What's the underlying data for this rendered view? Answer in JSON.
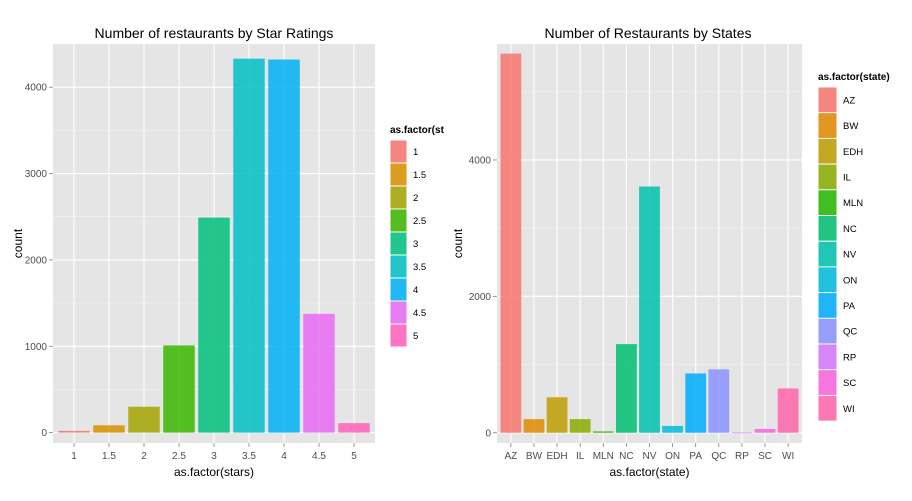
{
  "chart_data": [
    {
      "type": "bar",
      "title": "Number of restaurants by Star Ratings",
      "xlabel": "as.factor(stars)",
      "ylabel": "count",
      "legend_title": "as.factor(st",
      "legend_position": "right",
      "grid": true,
      "ylim": [
        -120,
        4500
      ],
      "yticks": [
        0,
        1000,
        2000,
        3000,
        4000
      ],
      "categories": [
        "1",
        "1.5",
        "2",
        "2.5",
        "3",
        "3.5",
        "4",
        "4.5",
        "5"
      ],
      "values": [
        20,
        85,
        300,
        1010,
        2490,
        4330,
        4320,
        1375,
        110
      ],
      "colors": [
        "#F8766D",
        "#D89000",
        "#A3A500",
        "#39B600",
        "#00BF7D",
        "#00BFC4",
        "#00B0F6",
        "#E76BF3",
        "#FF62BC"
      ]
    },
    {
      "type": "bar",
      "title": "Number of Restaurants by States",
      "xlabel": "as.factor(state)",
      "ylabel": "count",
      "legend_title": "as.factor(state)",
      "legend_position": "right",
      "grid": true,
      "ylim": [
        -150,
        5700
      ],
      "yticks": [
        0,
        2000,
        4000
      ],
      "categories": [
        "AZ",
        "BW",
        "EDH",
        "IL",
        "MLN",
        "NC",
        "NV",
        "ON",
        "PA",
        "QC",
        "RP",
        "SC",
        "WI"
      ],
      "values": [
        5560,
        200,
        520,
        200,
        20,
        1300,
        3610,
        100,
        870,
        930,
        5,
        55,
        650
      ],
      "colors": [
        "#F8766D",
        "#E18A00",
        "#BE9C00",
        "#8CAB00",
        "#24B700",
        "#00BE70",
        "#00C1AB",
        "#00BBDA",
        "#00ACFC",
        "#8B93FF",
        "#D575FE",
        "#F962DD",
        "#FF65AC"
      ]
    }
  ]
}
